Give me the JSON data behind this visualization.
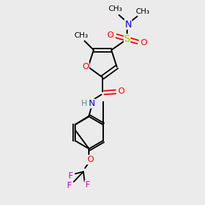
{
  "bg_color": "#ebebeb",
  "atom_colors": {
    "C": "#000000",
    "H": "#4a9a9a",
    "N": "#0000ee",
    "O": "#ff0000",
    "S": "#bbaa00",
    "F": "#cc00cc"
  },
  "bond_color": "#000000",
  "figsize": [
    3.0,
    3.0
  ],
  "dpi": 100,
  "xlim": [
    0,
    10
  ],
  "ylim": [
    0,
    10
  ]
}
